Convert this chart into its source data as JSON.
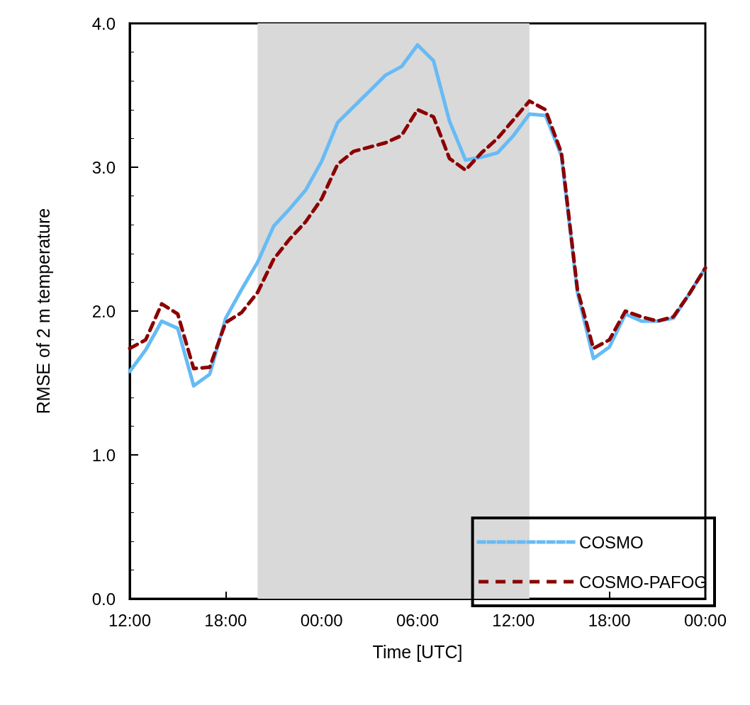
{
  "chart_data": {
    "type": "line",
    "xlabel": "Time [UTC]",
    "ylabel": "RMSE of 2 m temperature",
    "x": [
      "--01-01T12:00",
      "--01-01T13:00",
      "--01-01T14:00",
      "--01-01T15:00",
      "--01-01T16:00",
      "--01-01T17:00",
      "--01-01T18:00",
      "--01-01T19:00",
      "--01-01T20:00",
      "--01-01T21:00",
      "--01-01T22:00",
      "--01-01T23:00",
      "--01-02T00:00",
      "--01-02T01:00",
      "--01-02T02:00",
      "--01-02T03:00",
      "--01-02T04:00",
      "--01-02T05:00",
      "--01-02T06:00",
      "--01-02T07:00",
      "--01-02T08:00",
      "--01-02T09:00",
      "--01-02T10:00",
      "--01-02T11:00",
      "--01-02T12:00",
      "--01-02T13:00",
      "--01-02T14:00",
      "--01-02T15:00",
      "--01-02T16:00",
      "--01-02T17:00",
      "--01-02T18:00",
      "--01-02T19:00",
      "--01-02T20:00",
      "--01-02T21:00",
      "--01-02T22:00",
      "--01-02T23:00",
      "--01-03T00:00"
    ],
    "series": [
      {
        "name": "COSMO",
        "color": "#66bbf5",
        "line_style": "solid",
        "values": [
          1.58,
          1.73,
          1.93,
          1.88,
          1.48,
          1.56,
          1.95,
          2.15,
          2.34,
          2.59,
          2.71,
          2.84,
          3.04,
          3.31,
          3.42,
          3.53,
          3.64,
          3.7,
          3.85,
          3.74,
          3.32,
          3.05,
          3.07,
          3.1,
          3.22,
          3.37,
          3.36,
          3.08,
          2.13,
          1.67,
          1.75,
          1.98,
          1.93,
          1.93,
          1.95,
          2.12,
          2.3
        ]
      },
      {
        "name": "COSMO-PAFOG",
        "color": "#8b0000",
        "line_style": "dashed",
        "values": [
          1.74,
          1.8,
          2.05,
          1.98,
          1.6,
          1.61,
          1.92,
          1.99,
          2.13,
          2.36,
          2.5,
          2.62,
          2.78,
          3.02,
          3.11,
          3.14,
          3.17,
          3.22,
          3.4,
          3.35,
          3.06,
          2.98,
          3.1,
          3.2,
          3.33,
          3.46,
          3.4,
          3.1,
          2.15,
          1.74,
          1.8,
          2.0,
          1.96,
          1.93,
          1.96,
          2.12,
          2.3
        ]
      }
    ],
    "xlim": [
      "--01-01T12:00",
      "--01-03T00:00"
    ],
    "xticks": [
      {
        "value": "--01-01T12:00",
        "label": "12:00"
      },
      {
        "value": "--01-01T18:00",
        "label": "18:00"
      },
      {
        "value": "--01-02T00:00",
        "label": "00:00"
      },
      {
        "value": "--01-02T06:00",
        "label": "06:00"
      },
      {
        "value": "--01-02T12:00",
        "label": "12:00"
      },
      {
        "value": "--01-02T18:00",
        "label": "18:00"
      },
      {
        "value": "--01-03T00:00",
        "label": "00:00"
      }
    ],
    "ylim": [
      0,
      4
    ],
    "yticks": [
      {
        "value": 0,
        "label": "0.0"
      },
      {
        "value": 1,
        "label": "1.0"
      },
      {
        "value": 2,
        "label": "2.0"
      },
      {
        "value": 3,
        "label": "3.0"
      },
      {
        "value": 4,
        "label": "4.0"
      }
    ],
    "bands": [
      {
        "axis": "x",
        "from": "--01-01T20:00",
        "to": "--01-02T13:00",
        "color": "#d9d9d9"
      }
    ],
    "grid": false,
    "legend": "bottom right",
    "marker": "none"
  }
}
